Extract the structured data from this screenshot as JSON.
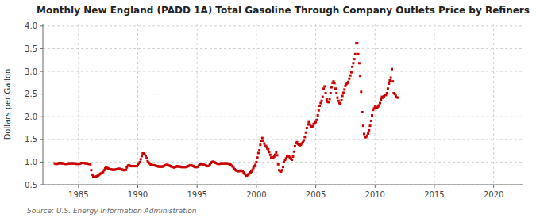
{
  "chart_data": {
    "type": "scatter",
    "title": "Monthly New England (PADD 1A) Total Gasoline Through Company Outlets Price by Refiners",
    "ylabel": "Dollars per Gallon",
    "source": "Source: U.S. Energy Information Administration",
    "color": "#CC0000",
    "marker": "square",
    "grid": true,
    "xlim": [
      1982.0,
      2022.5
    ],
    "ylim": [
      0.5,
      4.05
    ],
    "xticks": [
      1985,
      1990,
      1995,
      2000,
      2005,
      2010,
      2015,
      2020
    ],
    "yticks": [
      0.5,
      {
        "value": 1.0,
        "label": "1.0"
      },
      1.5,
      {
        "value": 2.0,
        "label": "2.0"
      },
      2.5,
      {
        "value": 3.0,
        "label": "3.0"
      },
      3.5,
      {
        "value": 4.0,
        "label": "4.0"
      }
    ],
    "x": [
      1983.0,
      1983.08,
      1983.17,
      1983.25,
      1983.33,
      1983.42,
      1983.5,
      1983.58,
      1983.67,
      1983.75,
      1983.83,
      1983.92,
      1984.0,
      1984.08,
      1984.17,
      1984.25,
      1984.33,
      1984.42,
      1984.5,
      1984.58,
      1984.67,
      1984.75,
      1984.83,
      1984.92,
      1985.0,
      1985.08,
      1985.17,
      1985.25,
      1985.33,
      1985.42,
      1985.5,
      1985.58,
      1985.67,
      1985.75,
      1985.83,
      1985.92,
      1986.0,
      1986.08,
      1986.17,
      1986.25,
      1986.33,
      1986.42,
      1986.5,
      1986.58,
      1986.67,
      1986.75,
      1986.83,
      1986.92,
      1987.0,
      1987.08,
      1987.17,
      1987.25,
      1987.33,
      1987.42,
      1987.5,
      1987.58,
      1987.67,
      1987.75,
      1987.83,
      1987.92,
      1988.0,
      1988.08,
      1988.17,
      1988.25,
      1988.33,
      1988.42,
      1988.5,
      1988.58,
      1988.67,
      1988.75,
      1988.83,
      1988.92,
      1989.0,
      1989.08,
      1989.17,
      1989.25,
      1989.33,
      1989.42,
      1989.5,
      1989.58,
      1989.67,
      1989.75,
      1989.83,
      1989.92,
      1990.0,
      1990.08,
      1990.17,
      1990.25,
      1990.33,
      1990.42,
      1990.5,
      1990.58,
      1990.67,
      1990.75,
      1990.83,
      1990.92,
      1991.0,
      1991.08,
      1991.17,
      1991.25,
      1991.33,
      1991.42,
      1991.5,
      1991.58,
      1991.67,
      1991.75,
      1991.83,
      1991.92,
      1992.0,
      1992.08,
      1992.17,
      1992.25,
      1992.33,
      1992.42,
      1992.5,
      1992.58,
      1992.67,
      1992.75,
      1992.83,
      1992.92,
      1993.0,
      1993.08,
      1993.17,
      1993.25,
      1993.33,
      1993.42,
      1993.5,
      1993.58,
      1993.67,
      1993.75,
      1993.83,
      1993.92,
      1994.0,
      1994.08,
      1994.17,
      1994.25,
      1994.33,
      1994.42,
      1994.5,
      1994.58,
      1994.67,
      1994.75,
      1994.83,
      1994.92,
      1995.0,
      1995.08,
      1995.17,
      1995.25,
      1995.33,
      1995.42,
      1995.5,
      1995.58,
      1995.67,
      1995.75,
      1995.83,
      1995.92,
      1996.0,
      1996.08,
      1996.17,
      1996.25,
      1996.33,
      1996.42,
      1996.5,
      1996.58,
      1996.67,
      1996.75,
      1996.83,
      1996.92,
      1997.0,
      1997.08,
      1997.17,
      1997.25,
      1997.33,
      1997.42,
      1997.5,
      1997.58,
      1997.67,
      1997.75,
      1997.83,
      1997.92,
      1998.0,
      1998.08,
      1998.17,
      1998.25,
      1998.33,
      1998.42,
      1998.5,
      1998.58,
      1998.67,
      1998.75,
      1998.83,
      1998.92,
      1999.0,
      1999.08,
      1999.17,
      1999.25,
      1999.33,
      1999.42,
      1999.5,
      1999.58,
      1999.67,
      1999.75,
      1999.83,
      1999.92,
      2000.0,
      2000.08,
      2000.17,
      2000.25,
      2000.33,
      2000.42,
      2000.5,
      2000.58,
      2000.67,
      2000.75,
      2000.83,
      2000.92,
      2001.0,
      2001.08,
      2001.17,
      2001.25,
      2001.33,
      2001.42,
      2001.5,
      2001.58,
      2001.67,
      2001.75,
      2001.83,
      2001.92,
      2002.0,
      2002.08,
      2002.17,
      2002.25,
      2002.33,
      2002.42,
      2002.5,
      2002.58,
      2002.67,
      2002.75,
      2002.83,
      2002.92,
      2003.0,
      2003.08,
      2003.17,
      2003.25,
      2003.33,
      2003.42,
      2003.5,
      2003.58,
      2003.67,
      2003.75,
      2003.83,
      2003.92,
      2004.0,
      2004.08,
      2004.17,
      2004.25,
      2004.33,
      2004.42,
      2004.5,
      2004.58,
      2004.67,
      2004.75,
      2004.83,
      2004.92,
      2005.0,
      2005.08,
      2005.17,
      2005.25,
      2005.33,
      2005.42,
      2005.5,
      2005.58,
      2005.67,
      2005.75,
      2005.83,
      2005.92,
      2006.0,
      2006.08,
      2006.17,
      2006.25,
      2006.33,
      2006.42,
      2006.5,
      2006.58,
      2006.67,
      2006.75,
      2006.83,
      2006.92,
      2007.0,
      2007.08,
      2007.17,
      2007.25,
      2007.33,
      2007.42,
      2007.5,
      2007.58,
      2007.67,
      2007.75,
      2007.83,
      2007.92,
      2008.0,
      2008.08,
      2008.17,
      2008.25,
      2008.33,
      2008.42,
      2008.5,
      2008.58,
      2008.67,
      2008.75,
      2008.83,
      2008.92,
      2009.0,
      2009.08,
      2009.17,
      2009.25,
      2009.33,
      2009.42,
      2009.5,
      2009.58,
      2009.67,
      2009.75,
      2009.83,
      2009.92,
      2010.0,
      2010.08,
      2010.17,
      2010.25,
      2010.33,
      2010.42,
      2010.5,
      2010.58,
      2010.67,
      2010.75,
      2010.83,
      2010.92,
      2011.0,
      2011.08,
      2011.17,
      2011.25,
      2011.33,
      2011.42,
      2011.5,
      2011.58,
      2011.67,
      2011.75,
      2011.83,
      2011.92
    ],
    "values": [
      0.97,
      0.96,
      0.96,
      0.97,
      0.97,
      0.98,
      0.98,
      0.97,
      0.97,
      0.97,
      0.96,
      0.96,
      0.96,
      0.96,
      0.97,
      0.97,
      0.97,
      0.97,
      0.97,
      0.97,
      0.97,
      0.97,
      0.96,
      0.96,
      0.96,
      0.96,
      0.97,
      0.98,
      0.98,
      0.98,
      0.98,
      0.97,
      0.97,
      0.97,
      0.96,
      0.96,
      0.95,
      0.82,
      0.72,
      0.68,
      0.67,
      0.67,
      0.68,
      0.69,
      0.7,
      0.72,
      0.74,
      0.75,
      0.76,
      0.78,
      0.82,
      0.86,
      0.88,
      0.87,
      0.86,
      0.85,
      0.84,
      0.84,
      0.83,
      0.83,
      0.83,
      0.83,
      0.84,
      0.84,
      0.85,
      0.85,
      0.85,
      0.84,
      0.83,
      0.83,
      0.82,
      0.82,
      0.83,
      0.88,
      0.92,
      0.93,
      0.92,
      0.91,
      0.91,
      0.91,
      0.91,
      0.91,
      0.91,
      0.91,
      0.94,
      0.97,
      1.0,
      1.06,
      1.13,
      1.19,
      1.19,
      1.17,
      1.14,
      1.09,
      1.02,
      0.99,
      0.97,
      0.95,
      0.94,
      0.93,
      0.93,
      0.93,
      0.92,
      0.91,
      0.91,
      0.9,
      0.9,
      0.9,
      0.9,
      0.9,
      0.91,
      0.92,
      0.93,
      0.94,
      0.93,
      0.93,
      0.92,
      0.91,
      0.9,
      0.89,
      0.89,
      0.88,
      0.89,
      0.9,
      0.91,
      0.9,
      0.9,
      0.9,
      0.89,
      0.89,
      0.89,
      0.89,
      0.89,
      0.89,
      0.9,
      0.91,
      0.92,
      0.93,
      0.93,
      0.92,
      0.91,
      0.9,
      0.89,
      0.89,
      0.89,
      0.9,
      0.93,
      0.95,
      0.96,
      0.96,
      0.95,
      0.94,
      0.93,
      0.92,
      0.91,
      0.91,
      0.92,
      0.95,
      0.98,
      1.0,
      1.01,
      1.0,
      0.99,
      0.98,
      0.97,
      0.96,
      0.96,
      0.96,
      0.97,
      0.97,
      0.97,
      0.97,
      0.97,
      0.97,
      0.97,
      0.97,
      0.96,
      0.95,
      0.94,
      0.92,
      0.9,
      0.87,
      0.84,
      0.82,
      0.81,
      0.8,
      0.8,
      0.8,
      0.81,
      0.81,
      0.8,
      0.77,
      0.74,
      0.72,
      0.7,
      0.71,
      0.73,
      0.75,
      0.77,
      0.79,
      0.83,
      0.87,
      0.91,
      0.94,
      1.0,
      1.1,
      1.2,
      1.26,
      1.38,
      1.47,
      1.53,
      1.47,
      1.41,
      1.36,
      1.34,
      1.3,
      1.28,
      1.22,
      1.16,
      1.1,
      1.09,
      1.1,
      1.12,
      1.16,
      1.21,
      1.15,
      0.95,
      0.82,
      0.8,
      0.79,
      0.82,
      0.89,
      1.0,
      1.05,
      1.08,
      1.12,
      1.14,
      1.12,
      1.1,
      1.07,
      1.05,
      1.12,
      1.23,
      1.35,
      1.42,
      1.44,
      1.4,
      1.38,
      1.37,
      1.38,
      1.41,
      1.44,
      1.48,
      1.55,
      1.65,
      1.75,
      1.83,
      1.88,
      1.83,
      1.79,
      1.78,
      1.79,
      1.84,
      1.86,
      1.88,
      1.93,
      2.03,
      2.14,
      2.24,
      2.3,
      2.35,
      2.44,
      2.62,
      2.67,
      2.52,
      2.38,
      2.33,
      2.32,
      2.39,
      2.52,
      2.65,
      2.75,
      2.78,
      2.74,
      2.62,
      2.52,
      2.42,
      2.35,
      2.3,
      2.28,
      2.36,
      2.46,
      2.53,
      2.6,
      2.68,
      2.72,
      2.74,
      2.77,
      2.84,
      2.91,
      2.98,
      3.1,
      3.18,
      3.27,
      3.38,
      3.62,
      3.62,
      3.38,
      3.18,
      2.9,
      2.55,
      2.1,
      1.8,
      1.62,
      1.55,
      1.55,
      1.58,
      1.63,
      1.7,
      1.8,
      1.91,
      2.03,
      2.15,
      2.18,
      2.22,
      2.2,
      2.2,
      2.22,
      2.25,
      2.3,
      2.38,
      2.44,
      2.42,
      2.45,
      2.48,
      2.48,
      2.52,
      2.62,
      2.73,
      2.8,
      2.86,
      3.05,
      2.78,
      2.52,
      2.5,
      2.46,
      2.43,
      2.42
    ]
  }
}
